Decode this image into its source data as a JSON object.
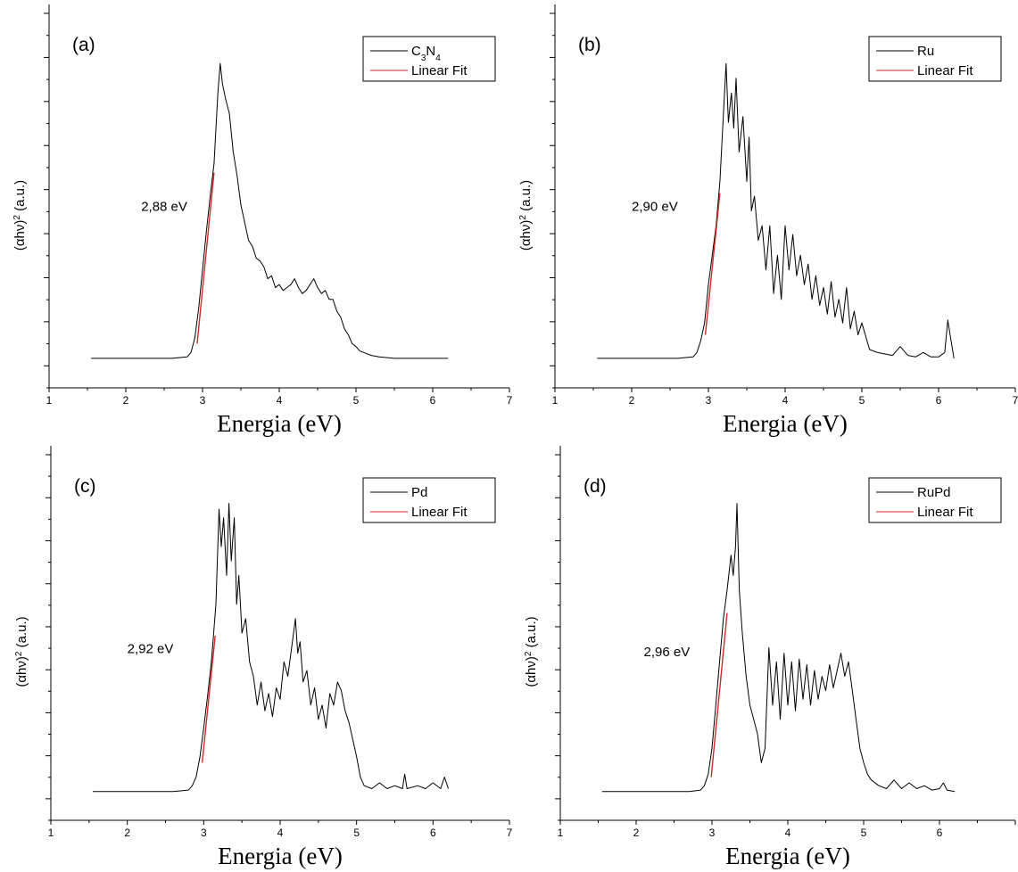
{
  "chart_data": [
    {
      "type": "line",
      "panel_label": "(a)",
      "xlabel": "Energia (eV)",
      "ylabel": "(αhν)",
      "ylabel_sup": "2",
      "ylabel_tail": " (a.u.)",
      "xlim": [
        1,
        7
      ],
      "ylim": [
        -0.1,
        1.2
      ],
      "x_ticks": [
        "1",
        "2",
        "3",
        "4",
        "5",
        "6",
        "7"
      ],
      "annotation": "2,88 eV",
      "annotation_at": [
        2.2,
        0.5
      ],
      "legend": {
        "position": "top-right",
        "entries": [
          {
            "label": "C",
            "sub": "3",
            "label2": "N",
            "sub2": "4",
            "color": "#000000"
          },
          {
            "label": "Linear Fit",
            "color": "#d62728"
          }
        ]
      },
      "fit": {
        "x": [
          2.93,
          3.15
        ],
        "y": [
          0.05,
          0.63
        ]
      },
      "series": [
        {
          "color": "#000000",
          "x": [
            1.55,
            2.6,
            2.8,
            2.85,
            2.9,
            2.95,
            3.0,
            3.05,
            3.1,
            3.15,
            3.2,
            3.23,
            3.26,
            3.3,
            3.35,
            3.4,
            3.45,
            3.5,
            3.55,
            3.6,
            3.65,
            3.7,
            3.75,
            3.8,
            3.85,
            3.9,
            3.95,
            4.0,
            4.05,
            4.1,
            4.15,
            4.2,
            4.25,
            4.3,
            4.35,
            4.4,
            4.45,
            4.5,
            4.55,
            4.6,
            4.65,
            4.7,
            4.75,
            4.8,
            4.85,
            4.9,
            4.95,
            5.0,
            5.05,
            5.1,
            5.2,
            5.3,
            5.5,
            5.8,
            6.2
          ],
          "y": [
            0.0,
            0.0,
            0.005,
            0.02,
            0.07,
            0.17,
            0.3,
            0.43,
            0.55,
            0.66,
            0.9,
            1.0,
            0.93,
            0.88,
            0.83,
            0.7,
            0.62,
            0.52,
            0.46,
            0.4,
            0.38,
            0.34,
            0.33,
            0.31,
            0.27,
            0.28,
            0.24,
            0.25,
            0.23,
            0.24,
            0.25,
            0.27,
            0.24,
            0.22,
            0.23,
            0.25,
            0.27,
            0.24,
            0.22,
            0.23,
            0.2,
            0.2,
            0.16,
            0.14,
            0.1,
            0.08,
            0.05,
            0.04,
            0.025,
            0.02,
            0.01,
            0.005,
            0.0,
            0.0,
            0.0
          ]
        }
      ]
    },
    {
      "type": "line",
      "panel_label": "(b)",
      "xlabel": "Energia (eV)",
      "ylabel": "(αhν)",
      "ylabel_sup": "2",
      "ylabel_tail": " (a.u.)",
      "xlim": [
        1,
        7
      ],
      "ylim": [
        -0.1,
        1.2
      ],
      "x_ticks": [
        "1",
        "2",
        "3",
        "4",
        "5",
        "6",
        "7"
      ],
      "annotation": "2,90 eV",
      "annotation_at": [
        2.0,
        0.5
      ],
      "legend": {
        "position": "top-right",
        "entries": [
          {
            "label": "Ru",
            "color": "#000000"
          },
          {
            "label": "Linear Fit",
            "color": "#d62728"
          }
        ]
      },
      "fit": {
        "x": [
          2.96,
          3.15
        ],
        "y": [
          0.08,
          0.56
        ]
      },
      "series": [
        {
          "color": "#000000",
          "x": [
            1.55,
            2.6,
            2.8,
            2.85,
            2.9,
            2.95,
            3.0,
            3.05,
            3.1,
            3.15,
            3.2,
            3.23,
            3.26,
            3.3,
            3.33,
            3.36,
            3.4,
            3.45,
            3.5,
            3.53,
            3.56,
            3.6,
            3.65,
            3.7,
            3.75,
            3.8,
            3.85,
            3.9,
            3.95,
            4.0,
            4.05,
            4.1,
            4.15,
            4.2,
            4.25,
            4.3,
            4.35,
            4.4,
            4.45,
            4.5,
            4.55,
            4.6,
            4.65,
            4.7,
            4.75,
            4.8,
            4.85,
            4.9,
            4.95,
            5.0,
            5.1,
            5.2,
            5.3,
            5.4,
            5.5,
            5.6,
            5.7,
            5.8,
            5.9,
            6.0,
            6.08,
            6.12,
            6.15,
            6.2
          ],
          "y": [
            0.0,
            0.0,
            0.005,
            0.02,
            0.06,
            0.12,
            0.25,
            0.35,
            0.45,
            0.6,
            0.85,
            1.0,
            0.8,
            0.9,
            0.78,
            0.95,
            0.7,
            0.82,
            0.6,
            0.75,
            0.5,
            0.55,
            0.4,
            0.45,
            0.3,
            0.45,
            0.22,
            0.35,
            0.2,
            0.45,
            0.3,
            0.42,
            0.28,
            0.35,
            0.25,
            0.32,
            0.2,
            0.28,
            0.18,
            0.24,
            0.15,
            0.26,
            0.14,
            0.2,
            0.12,
            0.24,
            0.1,
            0.16,
            0.08,
            0.12,
            0.03,
            0.02,
            0.015,
            0.01,
            0.04,
            0.01,
            0.005,
            0.02,
            0.005,
            0.005,
            0.02,
            0.13,
            0.08,
            0.0
          ]
        }
      ]
    },
    {
      "type": "line",
      "panel_label": "(c)",
      "xlabel": "Energia (eV)",
      "ylabel": "(αhν)",
      "ylabel_sup": "2",
      "ylabel_tail": " (a.u.)",
      "xlim": [
        1,
        7
      ],
      "ylim": [
        -0.1,
        1.2
      ],
      "x_ticks": [
        "1",
        "2",
        "3",
        "4",
        "5",
        "6",
        "7"
      ],
      "annotation": "2,92 eV",
      "annotation_at": [
        2.0,
        0.48
      ],
      "legend": {
        "position": "top-right",
        "entries": [
          {
            "label": "Pd",
            "color": "#000000"
          },
          {
            "label": "Linear Fit",
            "color": "#d62728"
          }
        ]
      },
      "fit": {
        "x": [
          2.98,
          3.15
        ],
        "y": [
          0.1,
          0.54
        ]
      },
      "series": [
        {
          "color": "#000000",
          "x": [
            1.55,
            2.6,
            2.8,
            2.85,
            2.9,
            2.95,
            3.0,
            3.05,
            3.1,
            3.13,
            3.16,
            3.2,
            3.23,
            3.26,
            3.3,
            3.33,
            3.36,
            3.4,
            3.43,
            3.46,
            3.5,
            3.55,
            3.6,
            3.65,
            3.7,
            3.75,
            3.8,
            3.85,
            3.9,
            3.95,
            4.0,
            4.05,
            4.1,
            4.15,
            4.2,
            4.23,
            4.26,
            4.3,
            4.35,
            4.4,
            4.45,
            4.5,
            4.55,
            4.6,
            4.65,
            4.7,
            4.75,
            4.8,
            4.85,
            4.9,
            4.95,
            5.0,
            5.05,
            5.1,
            5.2,
            5.3,
            5.4,
            5.5,
            5.6,
            5.63,
            5.66,
            5.8,
            5.9,
            6.0,
            6.1,
            6.15,
            6.2
          ],
          "y": [
            0.0,
            0.0,
            0.005,
            0.02,
            0.05,
            0.12,
            0.22,
            0.33,
            0.45,
            0.55,
            0.65,
            0.98,
            0.85,
            0.95,
            0.75,
            1.0,
            0.8,
            0.95,
            0.65,
            0.75,
            0.55,
            0.6,
            0.45,
            0.4,
            0.3,
            0.38,
            0.28,
            0.34,
            0.26,
            0.36,
            0.32,
            0.45,
            0.4,
            0.5,
            0.6,
            0.48,
            0.52,
            0.38,
            0.42,
            0.3,
            0.36,
            0.25,
            0.3,
            0.22,
            0.34,
            0.3,
            0.38,
            0.35,
            0.28,
            0.24,
            0.18,
            0.12,
            0.05,
            0.02,
            0.01,
            0.03,
            0.01,
            0.02,
            0.01,
            0.06,
            0.01,
            0.02,
            0.01,
            0.03,
            0.01,
            0.05,
            0.01
          ]
        }
      ]
    },
    {
      "type": "line",
      "panel_label": "(d)",
      "xlabel": "Energia (eV)",
      "ylabel": "(αhν)",
      "ylabel_sup": "2",
      "ylabel_tail": " (a.u.)",
      "xlim": [
        1,
        7
      ],
      "ylim": [
        -0.1,
        1.2
      ],
      "x_ticks": [
        "1",
        "2",
        "3",
        "4",
        "5",
        "6",
        ""
      ],
      "annotation": "2,96 eV",
      "annotation_at": [
        2.1,
        0.47
      ],
      "legend": {
        "position": "top-right",
        "entries": [
          {
            "label": "RuPd",
            "color": "#000000"
          },
          {
            "label": "Linear Fit",
            "color": "#d62728"
          }
        ]
      },
      "fit": {
        "x": [
          2.99,
          3.2
        ],
        "y": [
          0.05,
          0.62
        ]
      },
      "series": [
        {
          "color": "#000000",
          "x": [
            1.55,
            2.7,
            2.85,
            2.9,
            2.95,
            3.0,
            3.05,
            3.1,
            3.15,
            3.2,
            3.25,
            3.28,
            3.31,
            3.33,
            3.36,
            3.4,
            3.45,
            3.5,
            3.55,
            3.6,
            3.65,
            3.7,
            3.75,
            3.8,
            3.85,
            3.9,
            3.95,
            4.0,
            4.05,
            4.1,
            4.15,
            4.2,
            4.25,
            4.3,
            4.35,
            4.4,
            4.45,
            4.5,
            4.55,
            4.6,
            4.65,
            4.7,
            4.75,
            4.8,
            4.85,
            4.9,
            4.95,
            5.0,
            5.05,
            5.1,
            5.2,
            5.3,
            5.4,
            5.5,
            5.6,
            5.7,
            5.8,
            5.9,
            6.0,
            6.05,
            6.1,
            6.2
          ],
          "y": [
            0.0,
            0.0,
            0.005,
            0.02,
            0.06,
            0.15,
            0.3,
            0.45,
            0.6,
            0.7,
            0.82,
            0.75,
            0.85,
            1.0,
            0.7,
            0.55,
            0.4,
            0.3,
            0.25,
            0.2,
            0.1,
            0.15,
            0.5,
            0.3,
            0.45,
            0.25,
            0.48,
            0.3,
            0.45,
            0.28,
            0.46,
            0.32,
            0.44,
            0.3,
            0.42,
            0.32,
            0.4,
            0.35,
            0.44,
            0.36,
            0.42,
            0.48,
            0.4,
            0.45,
            0.35,
            0.25,
            0.15,
            0.1,
            0.06,
            0.04,
            0.02,
            0.01,
            0.04,
            0.01,
            0.03,
            0.01,
            0.02,
            0.005,
            0.01,
            0.03,
            0.005,
            0.0
          ]
        }
      ]
    }
  ]
}
